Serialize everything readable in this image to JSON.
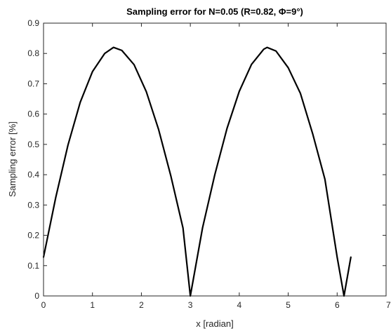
{
  "chart_data": {
    "type": "line",
    "title": "Sampling error for N=0.05 (R=0.82,  Φ=9°)",
    "xlabel": "x [radian]",
    "ylabel": "Sampling error [%]",
    "xlim": [
      0,
      7
    ],
    "ylim": [
      0,
      0.9
    ],
    "xticks": [
      "0",
      "1",
      "2",
      "3",
      "4",
      "5",
      "6",
      "7"
    ],
    "yticks": [
      "0",
      "0.1",
      "0.2",
      "0.3",
      "0.4",
      "0.5",
      "0.6",
      "0.7",
      "0.8",
      "0.9"
    ],
    "grid": false,
    "series": [
      {
        "x": [
          0,
          0.25,
          0.5,
          0.75,
          1.0,
          1.25,
          1.43,
          1.6,
          1.85,
          2.1,
          2.35,
          2.6,
          2.85,
          3.0,
          3.25,
          3.5,
          3.75,
          4.0,
          4.25,
          4.5,
          4.57,
          4.75,
          5.0,
          5.25,
          5.5,
          5.75,
          6.0,
          6.14,
          6.28
        ],
        "y": [
          0.128,
          0.325,
          0.498,
          0.639,
          0.74,
          0.8,
          0.82,
          0.81,
          0.763,
          0.674,
          0.55,
          0.397,
          0.224,
          0.0,
          0.225,
          0.4,
          0.553,
          0.675,
          0.764,
          0.814,
          0.82,
          0.808,
          0.753,
          0.668,
          0.535,
          0.385,
          0.128,
          0.0,
          0.128
        ]
      }
    ],
    "line_color": "#000000"
  }
}
